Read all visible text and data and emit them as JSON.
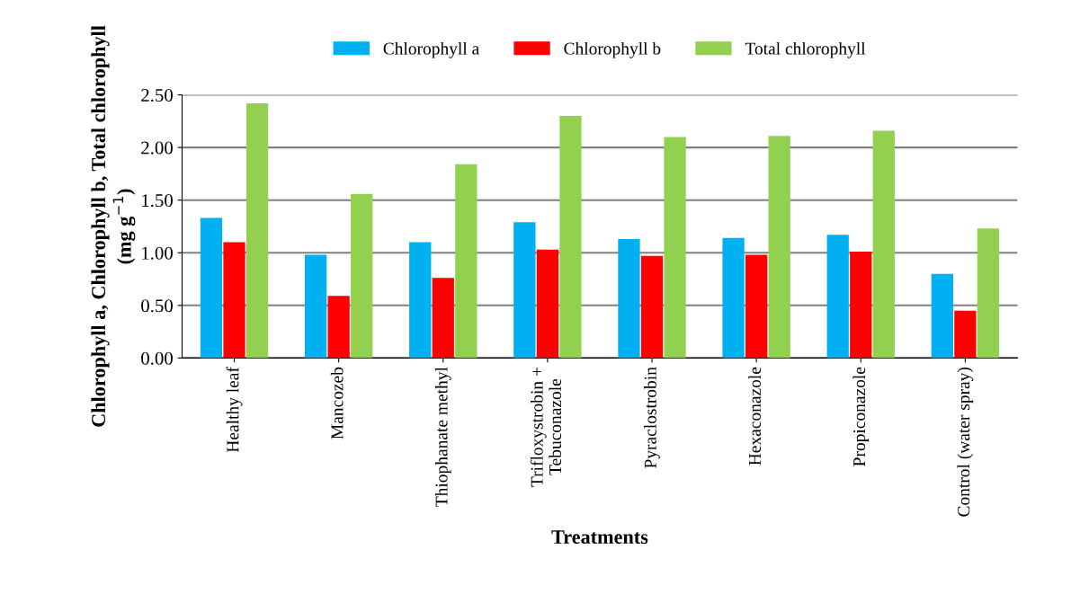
{
  "chart_data": {
    "type": "bar",
    "categories": [
      "Healthy leaf",
      "Mancozeb",
      "Thiophanate methyl",
      "Trifloxystrobin +\nTebuconazole",
      "Pyraclostrobin",
      "Hexaconazole",
      "Propiconazole",
      "Control (water spray)"
    ],
    "series": [
      {
        "name": "Chlorophyll a",
        "color": "#00b0f0",
        "values": [
          1.33,
          0.98,
          1.1,
          1.29,
          1.13,
          1.14,
          1.17,
          0.8
        ]
      },
      {
        "name": "Chlorophyll b",
        "color": "#ff0000",
        "values": [
          1.1,
          0.59,
          0.76,
          1.03,
          0.97,
          0.98,
          1.01,
          0.45
        ]
      },
      {
        "name": "Total chlorophyll",
        "color": "#92d050",
        "values": [
          2.42,
          1.56,
          1.84,
          2.3,
          2.1,
          2.11,
          2.16,
          1.23
        ]
      }
    ],
    "xlabel": "Treatments",
    "ylabel": "Chlorophyll a, Chlorophyll b, Total chlorophyll\n(mg g$^{−1}$)",
    "ylim": [
      0,
      2.5
    ],
    "yticks": [
      {
        "value": 0,
        "label": "0.00"
      },
      {
        "value": 0.5,
        "label": "0.50"
      },
      {
        "value": 1,
        "label": "1.00"
      },
      {
        "value": 1.5,
        "label": "1.50"
      },
      {
        "value": 2,
        "label": "2.00"
      },
      {
        "value": 2.5,
        "label": "2.50"
      }
    ],
    "grid": "y",
    "legend": "top"
  }
}
